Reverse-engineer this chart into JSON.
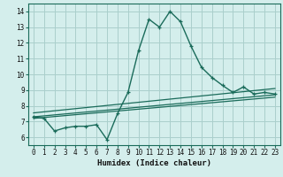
{
  "title": "",
  "xlabel": "Humidex (Indice chaleur)",
  "ylabel": "",
  "bg_color": "#d4eeec",
  "grid_color": "#aacfcc",
  "line_color": "#1a6b5a",
  "xlim": [
    -0.5,
    23.5
  ],
  "ylim": [
    5.5,
    14.5
  ],
  "xticks": [
    0,
    1,
    2,
    3,
    4,
    5,
    6,
    7,
    8,
    9,
    10,
    11,
    12,
    13,
    14,
    15,
    16,
    17,
    18,
    19,
    20,
    21,
    22,
    23
  ],
  "yticks": [
    6,
    7,
    8,
    9,
    10,
    11,
    12,
    13,
    14
  ],
  "main_x": [
    0,
    1,
    2,
    3,
    4,
    5,
    6,
    7,
    8,
    9,
    10,
    11,
    12,
    13,
    14,
    15,
    16,
    17,
    18,
    19,
    20,
    21,
    22,
    23
  ],
  "main_y": [
    7.3,
    7.2,
    6.4,
    6.6,
    6.7,
    6.7,
    6.8,
    5.85,
    7.5,
    8.85,
    11.5,
    13.5,
    13.0,
    14.0,
    13.35,
    11.8,
    10.45,
    9.8,
    9.3,
    8.85,
    9.2,
    8.75,
    8.85,
    8.75
  ],
  "line1_x": [
    0,
    23
  ],
  "line1_y": [
    7.55,
    9.1
  ],
  "line2_x": [
    0,
    23
  ],
  "line2_y": [
    7.3,
    8.7
  ],
  "line3_x": [
    0,
    23
  ],
  "line3_y": [
    7.2,
    8.55
  ]
}
